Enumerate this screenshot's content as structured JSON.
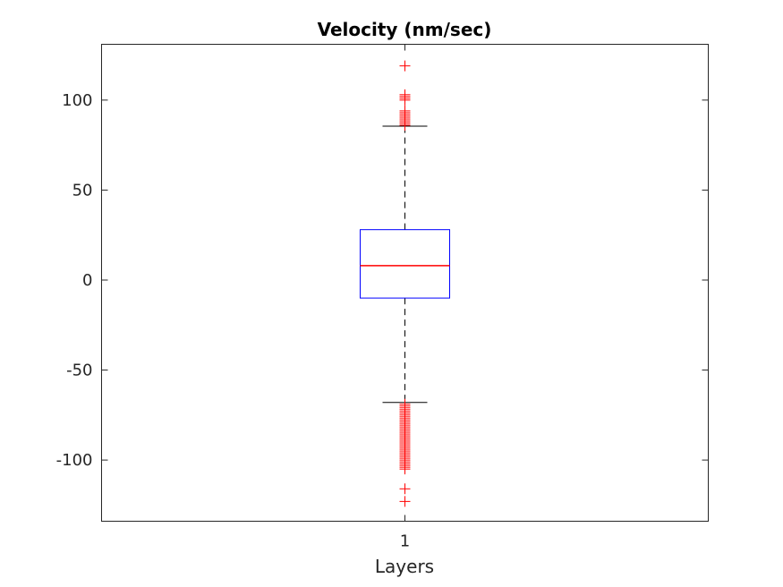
{
  "chart_data": {
    "type": "box",
    "title": "Velocity (nm/sec)",
    "xlabel": "Layers",
    "ylabel": "",
    "categories": [
      "1"
    ],
    "ylim": [
      -134,
      131
    ],
    "yticks": [
      -100,
      -50,
      0,
      50,
      100
    ],
    "ytick_labels": [
      "-100",
      "-50",
      "0",
      "50",
      "100"
    ],
    "grid": false,
    "boxes": [
      {
        "category": "1",
        "q1": -10,
        "median": 8,
        "q3": 28,
        "whisker_low": -68,
        "whisker_high": 85.5,
        "outliers_high": [
          86,
          87,
          88,
          89,
          90,
          91,
          92,
          93,
          94,
          100,
          101,
          102,
          103,
          119
        ],
        "outliers_low": [
          -69,
          -70,
          -71,
          -72,
          -73,
          -74,
          -75,
          -76,
          -77,
          -78,
          -79,
          -80,
          -81,
          -82,
          -83,
          -84,
          -85,
          -86,
          -87,
          -88,
          -89,
          -90,
          -91,
          -92,
          -93,
          -94,
          -95,
          -96,
          -97,
          -98,
          -99,
          -100,
          -101,
          -102,
          -103,
          -104,
          -105,
          -116,
          -123
        ]
      }
    ],
    "colors": {
      "box": "#0000ff",
      "median": "#ff0000",
      "whisker": "#000000",
      "outlier": "#ff0000",
      "axes": "#262626"
    }
  }
}
